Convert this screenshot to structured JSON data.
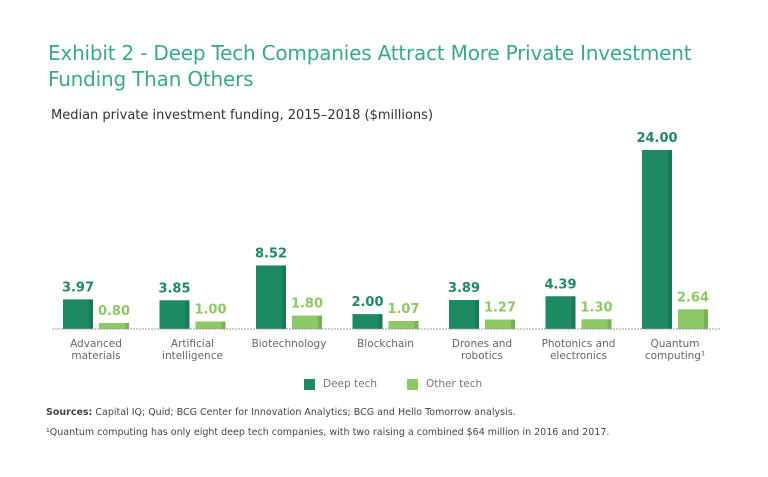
{
  "chart_data": {
    "type": "bar",
    "title": "Exhibit 2 - Deep Tech Companies Attract More Private Investment Funding Than Others",
    "subtitle": "Median private investment funding, 2015–2018 ($millions)",
    "categories": [
      [
        "Advanced",
        "materials"
      ],
      [
        "Artificial",
        "intelligence"
      ],
      [
        "Biotechnology"
      ],
      [
        "Blockchain"
      ],
      [
        "Drones and",
        "robotics"
      ],
      [
        "Photonics and",
        "electronics"
      ],
      [
        "Quantum",
        "computing¹"
      ]
    ],
    "series": [
      {
        "name": "Deep tech",
        "color": "#1e8a62",
        "values": [
          3.97,
          3.85,
          8.52,
          2.0,
          3.89,
          4.39,
          24.0
        ],
        "labels": [
          "3.97",
          "3.85",
          "8.52",
          "2.00",
          "3.89",
          "4.39",
          "24.00"
        ]
      },
      {
        "name": "Other tech",
        "color": "#8cc864",
        "values": [
          0.8,
          1.0,
          1.8,
          1.07,
          1.27,
          1.3,
          2.64
        ],
        "labels": [
          "0.80",
          "1.00",
          "1.80",
          "1.07",
          "1.27",
          "1.30",
          "2.64"
        ]
      }
    ],
    "ylim": [
      0,
      24
    ],
    "grid": false,
    "legend": "bottom-center"
  },
  "footer": {
    "sources_label": "Sources:",
    "sources_text": " Capital IQ; Quid; BCG Center for Innovation Analytics; BCG and Hello Tomorrow analysis.",
    "note": "¹Quantum computing has only eight deep tech companies, with two raising a combined $64 million in 2016 and 2017."
  }
}
